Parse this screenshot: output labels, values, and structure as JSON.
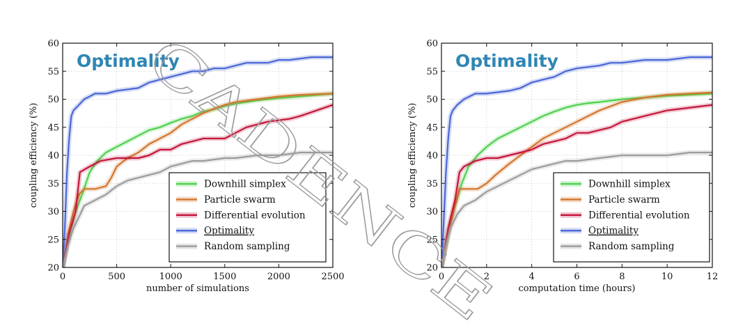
{
  "colors": {
    "downhill": "#4fd04f",
    "particle": "#d3752c",
    "differential": "#c4153a",
    "optimality": "#4a66d6",
    "random": "#9c9c9c",
    "title": "#2f86b4"
  },
  "watermark": "CADENCE",
  "chart_data": [
    {
      "type": "line",
      "title": "Optimality",
      "xlabel": "number of simulations",
      "ylabel": "coupling efficiency (%)",
      "xlim": [
        0,
        2500
      ],
      "ylim": [
        20,
        60
      ],
      "xticks": [
        "0",
        "500",
        "1000",
        "1500",
        "2000",
        "2500"
      ],
      "yticks": [
        "20",
        "25",
        "30",
        "35",
        "40",
        "45",
        "50",
        "55",
        "60"
      ],
      "grid": true,
      "legend_position": "lower-right",
      "series": [
        {
          "name": "Downhill simplex",
          "color_key": "downhill",
          "x": [
            0,
            40,
            80,
            120,
            180,
            250,
            320,
            400,
            500,
            600,
            700,
            800,
            900,
            1000,
            1100,
            1200,
            1300,
            1400,
            1500,
            1600,
            1700,
            1800,
            2000,
            2200,
            2500
          ],
          "y": [
            20,
            24,
            27,
            30,
            33,
            37,
            39,
            40.5,
            41.5,
            42.5,
            43.5,
            44.5,
            45,
            45.8,
            46.5,
            47,
            47.8,
            48.2,
            48.8,
            49.2,
            49.5,
            49.8,
            50.2,
            50.5,
            51
          ]
        },
        {
          "name": "Particle swarm",
          "color_key": "particle",
          "x": [
            0,
            50,
            100,
            150,
            200,
            300,
            400,
            450,
            500,
            600,
            700,
            800,
            900,
            1000,
            1100,
            1200,
            1300,
            1400,
            1500,
            1600,
            1800,
            2000,
            2200,
            2500
          ],
          "y": [
            20,
            26,
            30,
            33,
            34,
            34,
            34.5,
            36,
            38,
            39.5,
            40.5,
            42,
            43,
            44,
            45.5,
            46.5,
            47.5,
            48.3,
            49,
            49.5,
            50,
            50.5,
            50.8,
            51
          ]
        },
        {
          "name": "Differential evolution",
          "color_key": "differential",
          "x": [
            0,
            60,
            120,
            160,
            250,
            350,
            500,
            700,
            800,
            900,
            1000,
            1100,
            1300,
            1500,
            1600,
            1700,
            1800,
            1900,
            2100,
            2200,
            2350,
            2500
          ],
          "y": [
            20,
            26,
            30,
            37,
            38,
            39,
            39.5,
            39.5,
            40,
            41,
            41,
            42,
            43,
            43,
            44,
            45,
            45.5,
            46,
            46.5,
            47,
            48,
            49
          ]
        },
        {
          "name": "Optimality",
          "color_key": "optimality",
          "x": [
            0,
            20,
            40,
            60,
            80,
            100,
            150,
            200,
            300,
            400,
            500,
            700,
            800,
            900,
            1000,
            1100,
            1200,
            1300,
            1400,
            1500,
            1600,
            1700,
            1900,
            2000,
            2100,
            2300,
            2500
          ],
          "y": [
            20,
            27,
            37,
            43,
            47,
            48,
            49,
            50,
            51,
            51,
            51.5,
            52,
            53,
            53.5,
            54,
            54.5,
            55,
            55,
            55.5,
            55.5,
            56,
            56.5,
            56.5,
            57,
            57,
            57.5,
            57.5
          ]
        },
        {
          "name": "Random sampling",
          "color_key": "random",
          "x": [
            0,
            50,
            100,
            150,
            200,
            300,
            400,
            500,
            600,
            700,
            800,
            900,
            1000,
            1100,
            1200,
            1300,
            1500,
            1600,
            1800,
            1900,
            2000,
            2200,
            2500
          ],
          "y": [
            20,
            24,
            27,
            29,
            31,
            32,
            33,
            34.5,
            35.5,
            36,
            36.5,
            37,
            38,
            38.5,
            39,
            39,
            39.5,
            39.5,
            40,
            40,
            40,
            40.5,
            40.5
          ]
        }
      ]
    },
    {
      "type": "line",
      "title": "Optimality",
      "xlabel": "computation time (hours)",
      "ylabel": "coupling efficiency (%)",
      "xlim": [
        0,
        12
      ],
      "ylim": [
        20,
        60
      ],
      "xticks": [
        "0",
        "2",
        "4",
        "6",
        "8",
        "10",
        "12"
      ],
      "yticks": [
        "20",
        "25",
        "30",
        "35",
        "40",
        "45",
        "50",
        "55",
        "60"
      ],
      "grid": true,
      "legend_position": "lower-right",
      "series": [
        {
          "name": "Downhill simplex",
          "color_key": "downhill",
          "x": [
            0,
            0.2,
            0.4,
            0.6,
            0.9,
            1.2,
            1.6,
            2,
            2.5,
            3,
            3.5,
            4,
            4.5,
            5,
            5.5,
            6,
            6.5,
            7,
            8,
            9,
            10,
            11,
            12
          ],
          "y": [
            20,
            24,
            28,
            31,
            35,
            38,
            40,
            41.5,
            43,
            44,
            45,
            46,
            47,
            47.8,
            48.5,
            49,
            49.3,
            49.5,
            50,
            50.3,
            50.6,
            50.8,
            51
          ]
        },
        {
          "name": "Particle swarm",
          "color_key": "particle",
          "x": [
            0,
            0.3,
            0.6,
            0.8,
            1.2,
            1.6,
            2,
            2.4,
            3,
            3.5,
            4,
            4.5,
            5,
            5.5,
            6,
            6.5,
            7,
            8,
            9,
            10,
            11,
            12
          ],
          "y": [
            20,
            26,
            31,
            34,
            34,
            34,
            35,
            36.5,
            38.5,
            40,
            41.5,
            43,
            44,
            45,
            46,
            47,
            48,
            49.5,
            50.3,
            50.8,
            51,
            51.2
          ]
        },
        {
          "name": "Differential evolution",
          "color_key": "differential",
          "x": [
            0,
            0.3,
            0.6,
            0.8,
            1,
            1.5,
            2,
            2.5,
            3,
            3.5,
            4,
            4.5,
            5,
            5.5,
            6,
            6.5,
            7,
            7.5,
            8,
            8.5,
            9,
            9.5,
            10,
            11,
            12
          ],
          "y": [
            20,
            27,
            32,
            37,
            38,
            39,
            39.5,
            39.5,
            40,
            40.5,
            41,
            42,
            42.5,
            43,
            44,
            44,
            44.5,
            45,
            46,
            46.5,
            47,
            47.5,
            48,
            48.5,
            49
          ]
        },
        {
          "name": "Optimality",
          "color_key": "optimality",
          "x": [
            0,
            0.1,
            0.2,
            0.3,
            0.4,
            0.5,
            0.7,
            1,
            1.5,
            2,
            3,
            3.5,
            4,
            4.5,
            5,
            5.5,
            6,
            7,
            7.5,
            8,
            9,
            10,
            11,
            12
          ],
          "y": [
            20,
            28,
            37,
            43,
            47,
            48,
            49,
            50,
            51,
            51,
            51.5,
            52,
            53,
            53.5,
            54,
            55,
            55.5,
            56,
            56.5,
            56.5,
            57,
            57,
            57.5,
            57.5
          ]
        },
        {
          "name": "Random sampling",
          "color_key": "random",
          "x": [
            0,
            0.2,
            0.4,
            0.7,
            1,
            1.5,
            2,
            2.5,
            3,
            3.5,
            4,
            4.5,
            5,
            5.5,
            6,
            7,
            8,
            9,
            10,
            11,
            12
          ],
          "y": [
            20,
            24,
            27,
            29.5,
            31,
            32,
            33.5,
            34.5,
            35.5,
            36.5,
            37.5,
            38,
            38.5,
            39,
            39,
            39.5,
            40,
            40,
            40,
            40.5,
            40.5
          ]
        }
      ]
    }
  ]
}
